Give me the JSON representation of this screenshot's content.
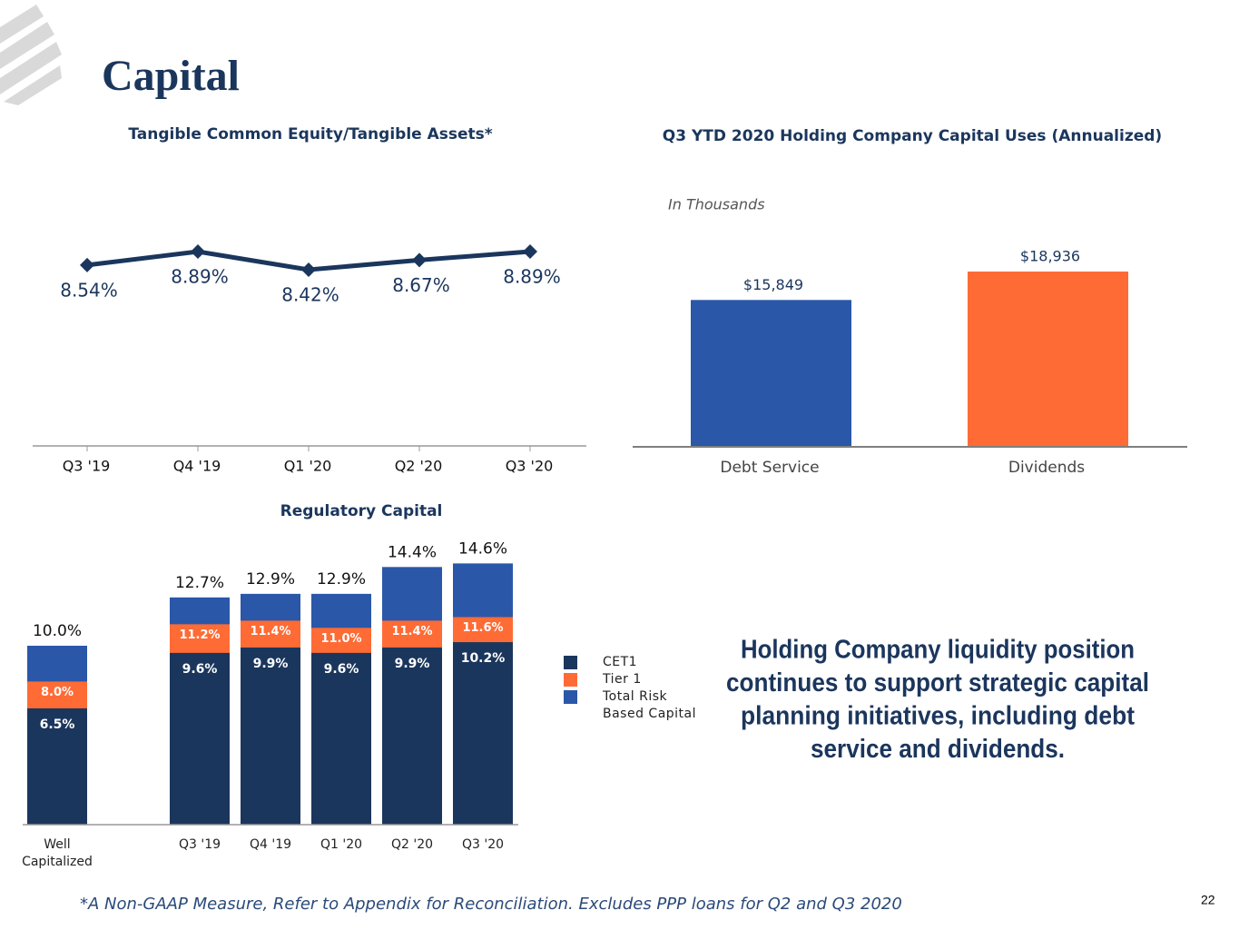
{
  "header": {
    "title": "Capital"
  },
  "chart_data": [
    {
      "type": "line",
      "title": "Tangible Common Equity/Tangible Assets*",
      "categories": [
        "Q3 '19",
        "Q4 '19",
        "Q1 '20",
        "Q2 '20",
        "Q3 '20"
      ],
      "values": [
        8.54,
        8.89,
        8.42,
        8.67,
        8.89
      ],
      "value_labels": [
        "8.54%",
        "8.89%",
        "8.42%",
        "8.67%",
        "8.89%"
      ],
      "color": "#1b365d"
    },
    {
      "type": "bar",
      "title": "Q3 YTD 2020 Holding Company Capital Uses (Annualized)",
      "subtitle": "In Thousands",
      "categories": [
        "Debt Service",
        "Dividends"
      ],
      "values": [
        15849,
        18936
      ],
      "value_labels": [
        "$15,849",
        "$18,936"
      ],
      "colors": [
        "#2a57a8",
        "#ff6b35"
      ]
    },
    {
      "type": "overlap",
      "title": "Regulatory Capital",
      "categories": [
        "Well Capitalized",
        "Q3 '19",
        "Q4 '19",
        "Q1 '20",
        "Q2 '20",
        "Q3 '20"
      ],
      "series": [
        {
          "name": "Total Risk Based Capital",
          "color": "#2a57a8",
          "values": [
            10.0,
            12.7,
            12.9,
            12.9,
            14.4,
            14.6
          ],
          "value_labels": [
            "10.0%",
            "12.7%",
            "12.9%",
            "12.9%",
            "14.4%",
            "14.6%"
          ]
        },
        {
          "name": "Tier 1",
          "color": "#ff6b35",
          "values": [
            8.0,
            11.2,
            11.4,
            11.0,
            11.4,
            11.6
          ],
          "value_labels": [
            "8.0%",
            "11.2%",
            "11.4%",
            "11.0%",
            "11.4%",
            "11.6%"
          ]
        },
        {
          "name": "CET1",
          "color": "#1b365d",
          "values": [
            6.5,
            9.6,
            9.9,
            9.6,
            9.9,
            10.2
          ],
          "value_labels": [
            "6.5%",
            "9.6%",
            "9.9%",
            "9.6%",
            "9.9%",
            "10.2%"
          ]
        }
      ]
    }
  ],
  "callout": [
    "Holding Company liquidity position",
    "continues to support strategic capital",
    "planning initiatives, including debt",
    "service and dividends."
  ],
  "footnote": "*A Non-GAAP Measure, Refer to Appendix for Reconciliation. Excludes PPP loans for Q2 and Q3 2020",
  "page_number": "22"
}
